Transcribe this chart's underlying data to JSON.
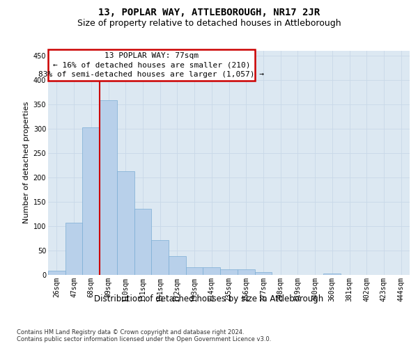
{
  "title": "13, POPLAR WAY, ATTLEBOROUGH, NR17 2JR",
  "subtitle": "Size of property relative to detached houses in Attleborough",
  "xlabel": "Distribution of detached houses by size in Attleborough",
  "ylabel": "Number of detached properties",
  "footnote": "Contains HM Land Registry data © Crown copyright and database right 2024.\nContains public sector information licensed under the Open Government Licence v3.0.",
  "categories": [
    "26sqm",
    "47sqm",
    "68sqm",
    "89sqm",
    "110sqm",
    "131sqm",
    "151sqm",
    "172sqm",
    "193sqm",
    "214sqm",
    "235sqm",
    "256sqm",
    "277sqm",
    "298sqm",
    "319sqm",
    "340sqm",
    "360sqm",
    "381sqm",
    "402sqm",
    "423sqm",
    "444sqm"
  ],
  "values": [
    8,
    107,
    302,
    358,
    213,
    135,
    72,
    38,
    15,
    15,
    11,
    11,
    6,
    0,
    0,
    0,
    3,
    0,
    0,
    0,
    0
  ],
  "bar_color": "#b8d0ea",
  "bar_edge_color": "#7aadd4",
  "vline_color": "#cc0000",
  "annotation_line1": "13 POPLAR WAY: 77sqm",
  "annotation_line2": "← 16% of detached houses are smaller (210)",
  "annotation_line3": "83% of semi-detached houses are larger (1,057) →",
  "annotation_box_color": "#cc0000",
  "ylim": [
    0,
    460
  ],
  "yticks": [
    0,
    50,
    100,
    150,
    200,
    250,
    300,
    350,
    400,
    450
  ],
  "grid_color": "#c8d8e8",
  "plot_bg_color": "#dce8f2",
  "title_fontsize": 10,
  "subtitle_fontsize": 9,
  "ylabel_fontsize": 8,
  "xlabel_fontsize": 8.5,
  "tick_fontsize": 7,
  "annot_fontsize": 8,
  "footnote_fontsize": 6
}
